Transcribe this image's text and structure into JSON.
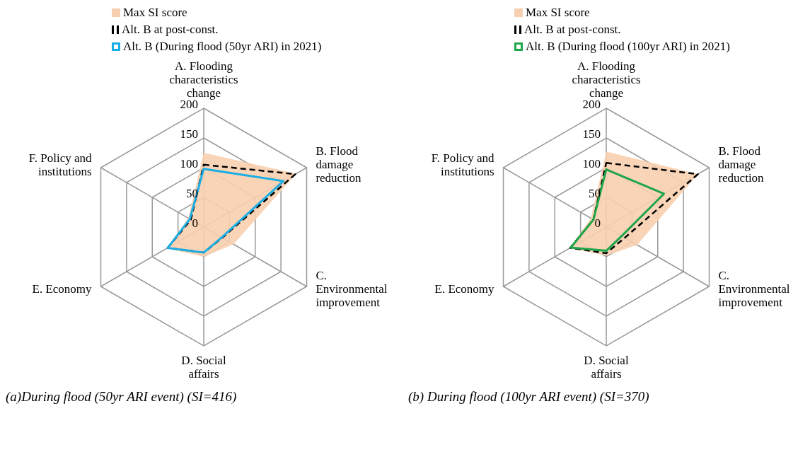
{
  "chart_data": [
    {
      "type": "radar",
      "categories": [
        "A. Flooding characteristics change",
        "B. Flood damage reduction",
        "C. Environmental improvement",
        "D. Social affairs",
        "E. Economy",
        "F. Policy and institutions"
      ],
      "ylim": [
        0,
        200
      ],
      "yticks": [
        0,
        50,
        100,
        150,
        200
      ],
      "grid": true,
      "legend": "top",
      "annotations": [
        "(a)During flood (50yr ARI event) (SI=416)"
      ],
      "series": [
        {
          "name": "Max SI score",
          "type": "area",
          "color": "#f8cfae",
          "values": [
            125,
            180,
            58,
            50,
            72,
            30
          ]
        },
        {
          "name": "Alt. B at post-const.",
          "line_style": "dashed",
          "color": "#000000",
          "values": [
            105,
            178,
            36,
            43,
            70,
            25
          ]
        },
        {
          "name": "Alt. B (During flood (50yr ARI) in 2021)",
          "color": "#1aaee5",
          "values": [
            98,
            155,
            35,
            43,
            70,
            27
          ]
        }
      ]
    },
    {
      "type": "radar",
      "categories": [
        "A. Flooding characteristics change",
        "B. Flood damage reduction",
        "C. Environmental improvement",
        "D. Social affairs",
        "E. Economy",
        "F. Policy and institutions"
      ],
      "ylim": [
        0,
        200
      ],
      "yticks": [
        0,
        50,
        100,
        150,
        200
      ],
      "grid": true,
      "legend": "top",
      "annotations": [
        "(b) During flood (100yr ARI event) (SI=370)"
      ],
      "series": [
        {
          "name": "Max SI score",
          "type": "area",
          "color": "#f8cfae",
          "values": [
            127,
            178,
            60,
            48,
            71,
            30
          ]
        },
        {
          "name": "Alt. B at post-const.",
          "line_style": "dashed",
          "color": "#000000",
          "values": [
            108,
            178,
            36,
            44,
            70,
            25
          ]
        },
        {
          "name": "Alt. B (During flood (100yr ARI) in 2021)",
          "color": "#1fa64a",
          "values": [
            97,
            112,
            30,
            40,
            69,
            25
          ]
        }
      ]
    }
  ]
}
